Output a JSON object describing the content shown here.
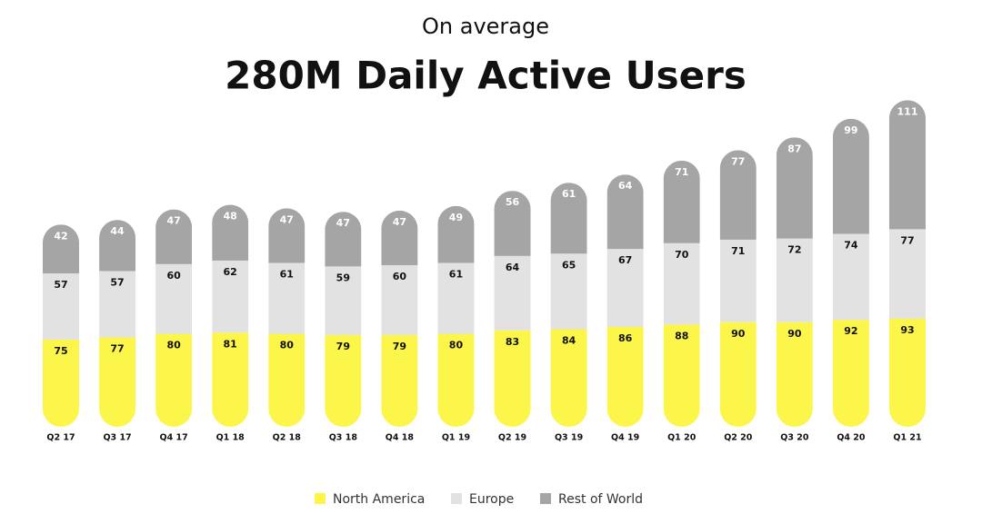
{
  "chart_data": {
    "type": "bar",
    "stacked": true,
    "subtitle": "On average",
    "title": "280M Daily Active Users",
    "categories": [
      "Q2 17",
      "Q3 17",
      "Q4 17",
      "Q1 18",
      "Q2 18",
      "Q3 18",
      "Q4 18",
      "Q1 19",
      "Q2 19",
      "Q3 19",
      "Q4 19",
      "Q1 20",
      "Q2 20",
      "Q3 20",
      "Q4 20",
      "Q1 21"
    ],
    "series": [
      {
        "name": "North America",
        "color": "#fcf64a",
        "values": [
          75,
          77,
          80,
          81,
          80,
          79,
          79,
          80,
          83,
          84,
          86,
          88,
          90,
          90,
          92,
          93
        ]
      },
      {
        "name": "Europe",
        "color": "#e2e2e2",
        "values": [
          57,
          57,
          60,
          62,
          61,
          59,
          60,
          61,
          64,
          65,
          67,
          70,
          71,
          72,
          74,
          77
        ]
      },
      {
        "name": "Rest of World",
        "color": "#a5a5a5",
        "values": [
          42,
          44,
          47,
          48,
          47,
          47,
          47,
          49,
          56,
          61,
          64,
          71,
          77,
          87,
          99,
          111
        ]
      }
    ]
  }
}
